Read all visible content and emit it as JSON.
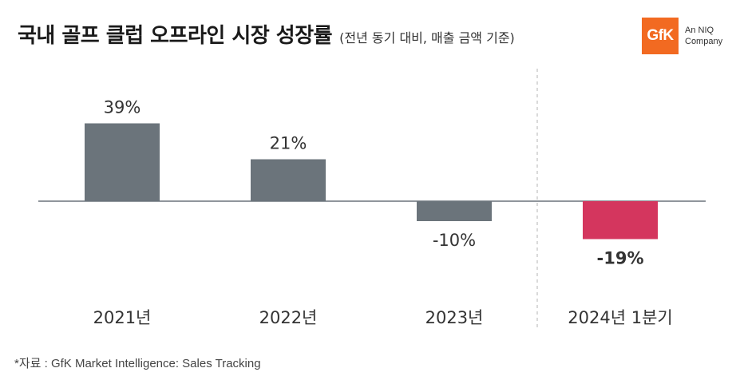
{
  "header": {
    "title": "국내 골프 클럽 오프라인 시장 성장률",
    "subtitle": "(전년 동기 대비, 매출 금액 기준)"
  },
  "logo": {
    "mark": "GfK",
    "line1": "An NIQ",
    "line2": "Company",
    "color": "#f26a21"
  },
  "source": "*자료 : GfK Market Intelligence: Sales Tracking",
  "chart_data": {
    "type": "bar",
    "categories": [
      "2021년",
      "2022년",
      "2023년",
      "2024년 1분기"
    ],
    "values": [
      39,
      21,
      -10,
      -19
    ],
    "value_labels": [
      "39%",
      "21%",
      "-10%",
      "-19%"
    ],
    "unit": "%",
    "colors": [
      "#6b747b",
      "#6b747b",
      "#6b747b",
      "#d4365e"
    ],
    "highlight_index": 3,
    "baseline": 0,
    "grid": false,
    "separator_before_category": 3
  }
}
